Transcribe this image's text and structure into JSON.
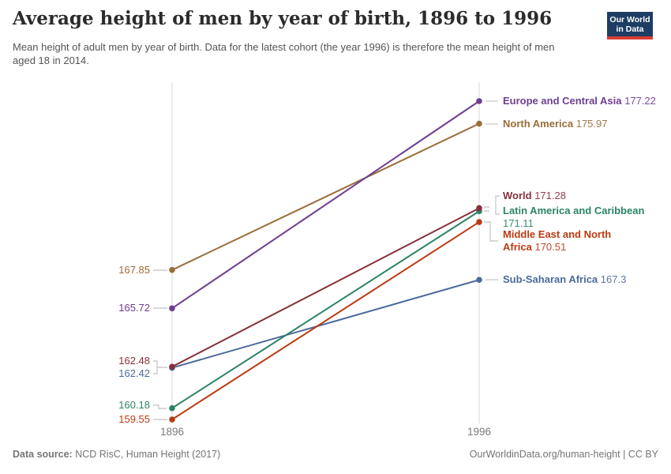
{
  "header": {
    "title": "Average height of men by year of birth, 1896 to 1996",
    "subtitle": "Mean height of adult men by year of birth. Data for the latest cohort (the year 1996) is therefore the mean height of men aged 18 in 2014.",
    "logo": {
      "line1": "Our World",
      "line2": "in Data",
      "bg_color": "#1d3d63",
      "accent_color": "#d73c34"
    }
  },
  "chart_data": {
    "type": "line",
    "subtype": "slope",
    "title": "Average height of men by year of birth, 1896 to 1996",
    "x": [
      1896,
      1996
    ],
    "x_tick_labels": [
      "1896",
      "1996"
    ],
    "ylim": [
      159.55,
      177.22
    ],
    "grid": false,
    "legend_position": "right-of-lines",
    "series": [
      {
        "name": "Europe and Central Asia",
        "color": "#6d3e91",
        "values": [
          165.72,
          177.22
        ],
        "start_label": "165.72",
        "end_label": "177.22"
      },
      {
        "name": "North America",
        "color": "#996d39",
        "values": [
          167.85,
          175.97
        ],
        "start_label": "167.85",
        "end_label": "175.97"
      },
      {
        "name": "World",
        "color": "#883039",
        "values": [
          162.48,
          171.28
        ],
        "start_label": "162.48",
        "end_label": "171.28"
      },
      {
        "name": "Latin America and Caribbean",
        "color": "#2c8465",
        "values": [
          160.18,
          171.11
        ],
        "start_label": "160.18",
        "end_label": "171.11"
      },
      {
        "name": "Middle East and North Africa",
        "color": "#bb3a13",
        "values": [
          159.55,
          170.51
        ],
        "start_label": "159.55",
        "end_label": "170.51"
      },
      {
        "name": "Sub-Saharan Africa",
        "color": "#4c6a9c",
        "values": [
          162.42,
          167.3
        ],
        "start_label": "162.42",
        "end_label": "167.3"
      }
    ]
  },
  "footer": {
    "source_label": "Data source:",
    "source_text": " NCD RisC, Human Height (2017)",
    "credit": "OurWorldinData.org/human-height | CC BY"
  }
}
